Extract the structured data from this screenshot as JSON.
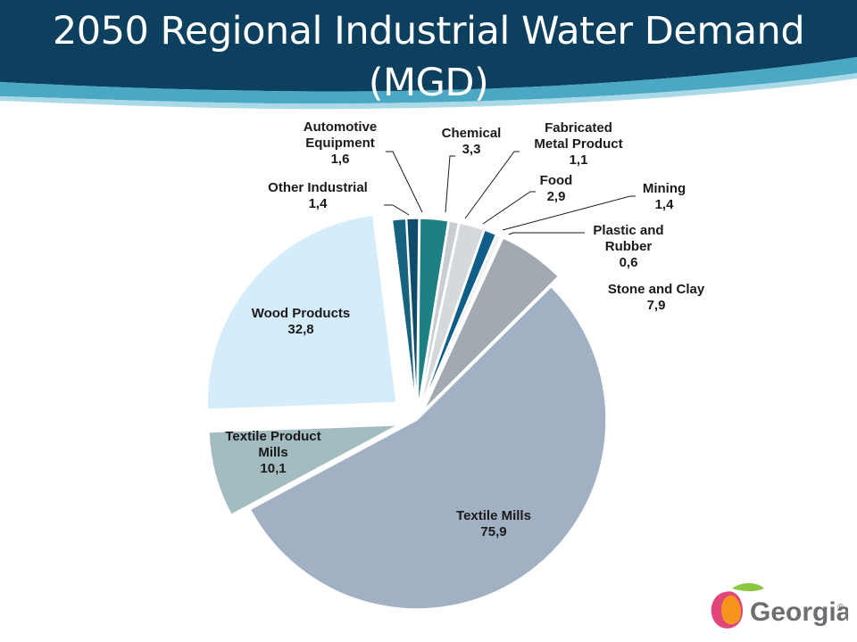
{
  "page": {
    "title_line1": "2050 Regional Industrial Water Demand",
    "title_line2": "(MGD)"
  },
  "logo": {
    "text": "Georgia",
    "mark": "®",
    "icon": "peach-logo-icon"
  },
  "colors": {
    "banner_dark": "#0d3f5e",
    "banner_wave": "#4aa8c4"
  },
  "chart_data": {
    "type": "pie",
    "title": "2050 Regional Industrial Water Demand (MGD)",
    "exploded": true,
    "slices": [
      {
        "name": "Other Industrial",
        "value": 1.4,
        "display": "1,4",
        "color": "#0f4c6b"
      },
      {
        "name": "Chemical",
        "value": 3.3,
        "display": "3,3",
        "color": "#1d8084"
      },
      {
        "name": "Fabricated Metal Product",
        "value": 1.1,
        "display": "1,1",
        "color": "#c9cdd0"
      },
      {
        "name": "Food",
        "value": 2.9,
        "display": "2,9",
        "color": "#d6d9db"
      },
      {
        "name": "Mining",
        "value": 1.4,
        "display": "1,4",
        "color": "#0f5e8a"
      },
      {
        "name": "Plastic and Rubber",
        "value": 0.6,
        "display": "0,6",
        "color": "#eef0f1"
      },
      {
        "name": "Stone and Clay",
        "value": 7.9,
        "display": "7,9",
        "color": "#a2a9b0"
      },
      {
        "name": "Textile Mills",
        "value": 75.9,
        "display": "75,9",
        "color": "#a1b0c2"
      },
      {
        "name": "Textile Product Mills",
        "value": 10.1,
        "display": "10,1",
        "color": "#a3bcc0"
      },
      {
        "name": "Wood Products",
        "value": 32.8,
        "display": "32,8",
        "color": "#d5ecfb"
      },
      {
        "name": "Automotive Equipment",
        "value": 1.6,
        "display": "1,6",
        "color": "#15637f"
      }
    ],
    "labels": [
      {
        "slice": "Automotive Equipment",
        "lines": [
          "Automotive",
          "Equipment",
          "1,6"
        ]
      },
      {
        "slice": "Other Industrial",
        "lines": [
          "Other Industrial",
          "1,4"
        ]
      },
      {
        "slice": "Chemical",
        "lines": [
          "Chemical",
          "3,3"
        ]
      },
      {
        "slice": "Fabricated Metal Product",
        "lines": [
          "Fabricated",
          "Metal Product",
          "1,1"
        ]
      },
      {
        "slice": "Food",
        "lines": [
          "Food",
          "2,9"
        ]
      },
      {
        "slice": "Mining",
        "lines": [
          "Mining",
          "1,4"
        ]
      },
      {
        "slice": "Plastic and Rubber",
        "lines": [
          "Plastic and",
          "Rubber",
          "0,6"
        ]
      },
      {
        "slice": "Stone and Clay",
        "lines": [
          "Stone and Clay",
          "7,9"
        ]
      },
      {
        "slice": "Wood Products",
        "lines": [
          "Wood Products",
          "32,8"
        ]
      },
      {
        "slice": "Textile Product Mills",
        "lines": [
          "Textile Product",
          "Mills",
          "10,1"
        ]
      },
      {
        "slice": "Textile Mills",
        "lines": [
          "Textile Mills",
          "75,9"
        ]
      }
    ]
  }
}
